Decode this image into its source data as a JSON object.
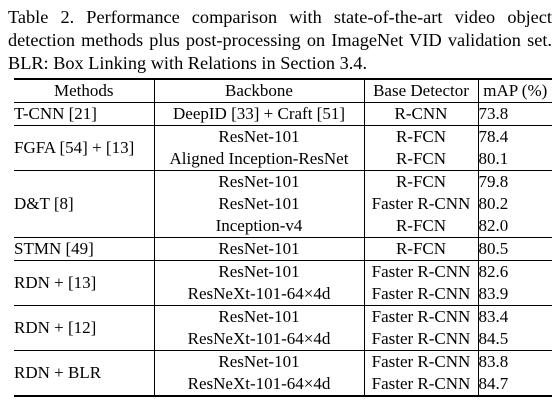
{
  "caption": "Table 2. Performance comparison with state-of-the-art video object detection methods plus post-processing on ImageNet VID validation set. BLR: Box Linking with Relations in Section 3.4.",
  "headers": [
    "Methods",
    "Backbone",
    "Base Detector",
    "mAP (%)"
  ],
  "groups": [
    {
      "method": "T-CNN [21]",
      "rows": [
        {
          "backbone": "DeepID [33] + Craft [51]",
          "detector": "R-CNN",
          "map": "73.8"
        }
      ]
    },
    {
      "method": "FGFA [54] + [13]",
      "rows": [
        {
          "backbone": "ResNet-101",
          "detector": "R-FCN",
          "map": "78.4"
        },
        {
          "backbone": "Aligned Inception-ResNet",
          "detector": "R-FCN",
          "map": "80.1"
        }
      ]
    },
    {
      "method": "D&T [8]",
      "rows": [
        {
          "backbone": "ResNet-101",
          "detector": "R-FCN",
          "map": "79.8"
        },
        {
          "backbone": "ResNet-101",
          "detector": "Faster R-CNN",
          "map": "80.2"
        },
        {
          "backbone": "Inception-v4",
          "detector": "R-FCN",
          "map": "82.0"
        }
      ]
    },
    {
      "method": "STMN [49]",
      "rows": [
        {
          "backbone": "ResNet-101",
          "detector": "R-FCN",
          "map": "80.5"
        }
      ]
    },
    {
      "method": "RDN + [13]",
      "rows": [
        {
          "backbone": "ResNet-101",
          "detector": "Faster R-CNN",
          "map": "82.6"
        },
        {
          "backbone": "ResNeXt-101-64×4d",
          "detector": "Faster R-CNN",
          "map": "83.9"
        }
      ]
    },
    {
      "method": "RDN + [12]",
      "rows": [
        {
          "backbone": "ResNet-101",
          "detector": "Faster R-CNN",
          "map": "83.4"
        },
        {
          "backbone": "ResNeXt-101-64×4d",
          "detector": "Faster R-CNN",
          "map": "84.5"
        }
      ]
    },
    {
      "method": "RDN + BLR",
      "rows": [
        {
          "backbone": "ResNet-101",
          "detector": "Faster R-CNN",
          "map": "83.8",
          "bold": true
        },
        {
          "backbone": "ResNeXt-101-64×4d",
          "detector": "Faster R-CNN",
          "map": "84.7",
          "bold": true
        }
      ]
    }
  ]
}
